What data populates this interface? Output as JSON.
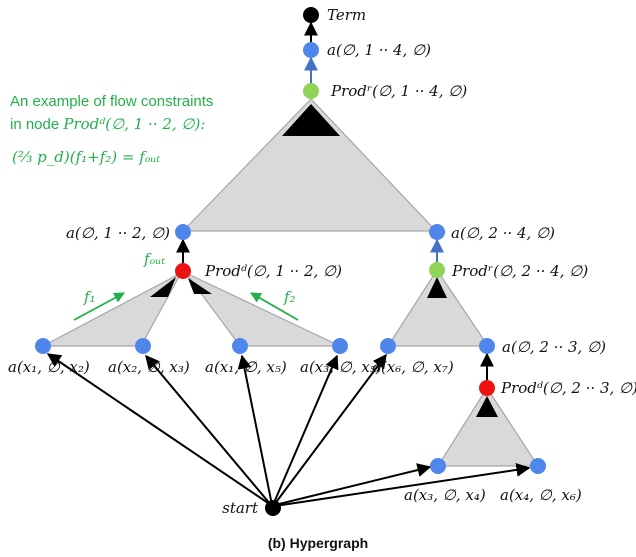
{
  "colors": {
    "blue_node": "#4f86ec",
    "red_node": "#ee1111",
    "green_node": "#8fd45a",
    "black_node": "#000000",
    "triangle_fill": "#d9d9d9",
    "triangle_stroke": "#a6a6a6",
    "annotation": "#22b04a",
    "blue_edge": "#4472c4"
  },
  "labels": {
    "term": "Term",
    "a_top": "a(∅, 1 ·· 4, ∅)",
    "prod_top": "Prodʳ(∅, 1 ·· 4, ∅)",
    "a_left": "a(∅, 1 ·· 2, ∅)",
    "a_right": "a(∅, 2 ·· 4, ∅)",
    "prod_left": "Prodᵈ(∅, 1 ·· 2, ∅)",
    "prod_right": "Prodʳ(∅, 2 ·· 4, ∅)",
    "a_x1_x2": "a(x₁, ∅, x₂)",
    "a_x2_x3": "a(x₂, ∅, x₃)",
    "a_x1_x5": "a(x₁, ∅, x₅)",
    "a_x3_x5": "a(x₃, ∅, x₅)",
    "a_x6_x7": "a(x₆, ∅, x₇)",
    "a_23": "a(∅, 2 ·· 3, ∅)",
    "prod_23": "Prodᵈ(∅, 2 ·· 3, ∅)",
    "a_x3_x4": "a(x₃, ∅, x₄)",
    "a_x4_x6": "a(x₄, ∅, x₆)",
    "start": "start",
    "f_out": "fₒᵤₜ",
    "f1": "f₁",
    "f2": "f₂"
  },
  "annotation": {
    "line1": "An example of flow constraints",
    "line2_prefix": "in node ",
    "line2_node": "Prodᵈ(∅, 1 ·· 2, ∅):",
    "equation": "(⅔ p_d)(f₁+f₂) = fₒᵤₜ"
  },
  "caption": "(b) Hypergraph"
}
